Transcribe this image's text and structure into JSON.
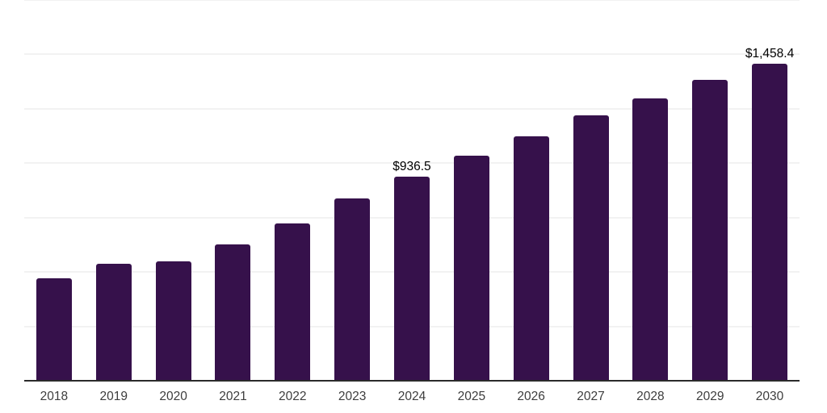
{
  "chart_data": {
    "type": "bar",
    "title": "",
    "xlabel": "",
    "ylabel": "",
    "categories": [
      "2018",
      "2019",
      "2020",
      "2021",
      "2022",
      "2023",
      "2024",
      "2025",
      "2026",
      "2027",
      "2028",
      "2029",
      "2030"
    ],
    "values": [
      470.7,
      537.3,
      548.4,
      626.4,
      722.7,
      837.5,
      936.5,
      1034.0,
      1124.8,
      1221.0,
      1299.0,
      1382.5,
      1458.4
    ],
    "data_labels": [
      "",
      "",
      "",
      "",
      "",
      "",
      "$936.5",
      "",
      "",
      "",
      "",
      "",
      "$1,458.4"
    ],
    "ylim": [
      0,
      1750
    ],
    "gridline_interval": 250,
    "grid": true,
    "legend": false,
    "y_tick_labels_visible": false,
    "colors": {
      "bar": "#36114B",
      "axis_line": "#2b2b2b",
      "gridline": "#f2f2f2",
      "tick_label": "#3d3d3d",
      "data_label": "#000000",
      "background": "#ffffff"
    }
  }
}
